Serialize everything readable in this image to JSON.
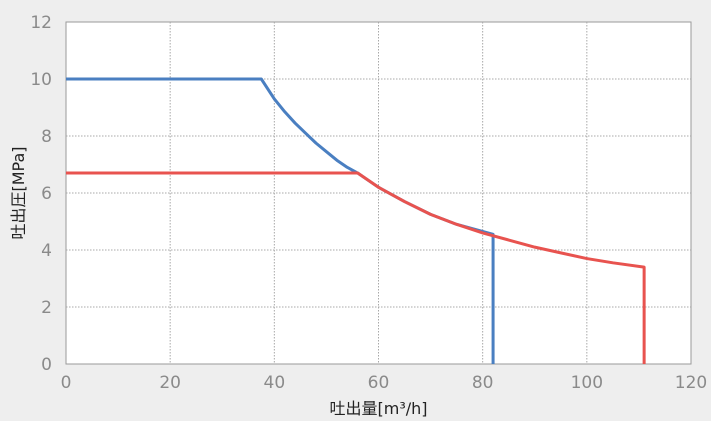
{
  "chart_data": {
    "type": "line",
    "title": "",
    "xlabel": "吐出量[m³/h]",
    "ylabel": "吐出圧[MPa]",
    "xlim": [
      0,
      120
    ],
    "ylim": [
      0,
      12
    ],
    "x_ticks": [
      0,
      20,
      40,
      60,
      80,
      100,
      120
    ],
    "y_ticks": [
      0,
      2,
      4,
      6,
      8,
      10,
      12
    ],
    "grid": true,
    "legend": "none",
    "series": [
      {
        "color": "#4a7fc1",
        "points": [
          [
            0,
            10.0
          ],
          [
            37.5,
            10.0
          ],
          [
            40,
            9.3
          ],
          [
            42,
            8.85
          ],
          [
            44,
            8.45
          ],
          [
            46,
            8.1
          ],
          [
            48,
            7.75
          ],
          [
            50,
            7.45
          ],
          [
            52,
            7.15
          ],
          [
            54,
            6.9
          ],
          [
            56,
            6.7
          ],
          [
            58,
            6.45
          ],
          [
            60,
            6.2
          ],
          [
            65,
            5.7
          ],
          [
            70,
            5.25
          ],
          [
            75,
            4.9
          ],
          [
            82,
            4.55
          ],
          [
            82,
            0
          ]
        ]
      },
      {
        "color": "#e8534f",
        "points": [
          [
            0,
            6.7
          ],
          [
            56,
            6.7
          ],
          [
            60,
            6.2
          ],
          [
            65,
            5.7
          ],
          [
            70,
            5.25
          ],
          [
            75,
            4.9
          ],
          [
            80,
            4.6
          ],
          [
            85,
            4.35
          ],
          [
            90,
            4.1
          ],
          [
            95,
            3.9
          ],
          [
            100,
            3.7
          ],
          [
            105,
            3.55
          ],
          [
            111,
            3.4
          ],
          [
            111,
            0
          ]
        ]
      }
    ]
  }
}
